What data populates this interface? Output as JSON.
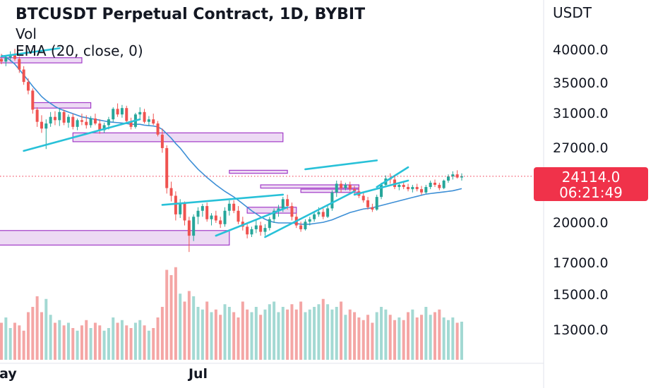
{
  "header": {
    "title": "BTCUSDT Perpetual Contract, 1D, BYBIT",
    "vol_label": "Vol",
    "ema_label": "EMA (20, close, 0)"
  },
  "price_axis": {
    "currency": "USDT",
    "ticks": [
      "40000.0",
      "35000.0",
      "31000.0",
      "27000.0",
      "20000.0",
      "17000.0",
      "15000.0",
      "13000.0"
    ]
  },
  "time_axis": {
    "ticks": [
      "May",
      "Jul"
    ]
  },
  "last_price": {
    "value": "24114.0",
    "countdown": "06:21:49"
  },
  "colors": {
    "up": "#26a69a",
    "down": "#ef5350",
    "vol_up": "#a3d9d3",
    "vol_down": "#f4a6a5",
    "ema": "#3d8fd6",
    "trendline": "#28c1d8",
    "zone_fill": "#ead3f2",
    "zone_stroke": "#a23bc8",
    "badge": "#f0324a"
  },
  "chart_data": {
    "type": "candlestick",
    "symbol": "BTCUSDT Perpetual Contract",
    "timeframe": "1D",
    "exchange": "BYBIT",
    "y_scale": "log",
    "ylim": [
      16000,
      46000
    ],
    "last_price": 24114.0,
    "candles": [
      [
        38600,
        39400,
        37800,
        38200
      ],
      [
        38200,
        39000,
        37500,
        38800
      ],
      [
        38800,
        39800,
        38200,
        39200
      ],
      [
        39200,
        40200,
        38300,
        38600
      ],
      [
        38600,
        39000,
        36500,
        37000
      ],
      [
        37000,
        37500,
        34800,
        35200
      ],
      [
        35200,
        35700,
        33500,
        34000
      ],
      [
        34000,
        34300,
        31000,
        31500
      ],
      [
        31500,
        31800,
        29400,
        30000
      ],
      [
        30000,
        30800,
        28700,
        29200
      ],
      [
        29200,
        30300,
        26900,
        29800
      ],
      [
        29800,
        31200,
        29400,
        30600
      ],
      [
        30600,
        31300,
        29600,
        30200
      ],
      [
        30200,
        31700,
        29500,
        31200
      ],
      [
        31200,
        31500,
        29600,
        29900
      ],
      [
        29900,
        30900,
        29300,
        30600
      ],
      [
        30600,
        31000,
        29100,
        29400
      ],
      [
        29400,
        30400,
        29000,
        30200
      ],
      [
        30200,
        31000,
        29600,
        30000
      ],
      [
        30000,
        30800,
        29200,
        29600
      ],
      [
        29600,
        30700,
        29300,
        30400
      ],
      [
        30400,
        31000,
        29600,
        29800
      ],
      [
        29800,
        30300,
        28600,
        29000
      ],
      [
        29000,
        29900,
        28700,
        29600
      ],
      [
        29600,
        30600,
        29100,
        30300
      ],
      [
        30300,
        31800,
        30000,
        31600
      ],
      [
        31600,
        32300,
        30600,
        30900
      ],
      [
        30900,
        32100,
        30500,
        31700
      ],
      [
        31700,
        32000,
        29800,
        30100
      ],
      [
        30100,
        30500,
        29100,
        29400
      ],
      [
        29400,
        31100,
        29200,
        30900
      ],
      [
        30900,
        31800,
        30400,
        31200
      ],
      [
        31200,
        31600,
        29800,
        30000
      ],
      [
        30000,
        30700,
        29500,
        30300
      ],
      [
        30300,
        31000,
        29600,
        29800
      ],
      [
        29800,
        30100,
        28300,
        28500
      ],
      [
        28500,
        29200,
        26500,
        27000
      ],
      [
        27000,
        27300,
        22500,
        23000
      ],
      [
        23000,
        23600,
        21800,
        22300
      ],
      [
        22300,
        22700,
        20200,
        20700
      ],
      [
        20700,
        22000,
        20400,
        21600
      ],
      [
        21600,
        21800,
        19800,
        20200
      ],
      [
        20200,
        20500,
        17800,
        19000
      ],
      [
        19000,
        20700,
        18600,
        20500
      ],
      [
        20500,
        21300,
        19900,
        21000
      ],
      [
        21000,
        21600,
        20500,
        21400
      ],
      [
        21400,
        21700,
        20100,
        20300
      ],
      [
        20300,
        20800,
        19800,
        20600
      ],
      [
        20600,
        21000,
        20000,
        20200
      ],
      [
        20200,
        20500,
        19600,
        19900
      ],
      [
        19900,
        21300,
        19700,
        21000
      ],
      [
        21000,
        21900,
        20600,
        21600
      ],
      [
        21600,
        21900,
        20800,
        21000
      ],
      [
        21000,
        21400,
        19900,
        20100
      ],
      [
        20100,
        20500,
        19400,
        19700
      ],
      [
        19700,
        19900,
        18800,
        19100
      ],
      [
        19100,
        19700,
        18900,
        19500
      ],
      [
        19500,
        20200,
        19200,
        19800
      ],
      [
        19800,
        20100,
        19000,
        19300
      ],
      [
        19300,
        19900,
        19000,
        19600
      ],
      [
        19600,
        20500,
        19400,
        20300
      ],
      [
        20300,
        21200,
        20000,
        21000
      ],
      [
        21000,
        21500,
        20500,
        21200
      ],
      [
        21200,
        22200,
        20900,
        22000
      ],
      [
        22000,
        22400,
        21100,
        21400
      ],
      [
        21400,
        21700,
        20200,
        20500
      ],
      [
        20500,
        20800,
        19600,
        19800
      ],
      [
        19800,
        20100,
        19300,
        19500
      ],
      [
        19500,
        20300,
        19400,
        20100
      ],
      [
        20100,
        20500,
        19800,
        20300
      ],
      [
        20300,
        20900,
        20100,
        20700
      ],
      [
        20700,
        21300,
        20500,
        20900
      ],
      [
        20900,
        21200,
        20300,
        20500
      ],
      [
        20500,
        21400,
        20400,
        21200
      ],
      [
        21200,
        22800,
        21000,
        22600
      ],
      [
        22600,
        23700,
        22200,
        23400
      ],
      [
        23400,
        23700,
        22600,
        23000
      ],
      [
        23000,
        23500,
        22800,
        23300
      ],
      [
        23300,
        23600,
        22700,
        22900
      ],
      [
        22900,
        23200,
        22400,
        22700
      ],
      [
        22700,
        23100,
        22100,
        22300
      ],
      [
        22300,
        22600,
        21700,
        21900
      ],
      [
        21900,
        22200,
        21100,
        21300
      ],
      [
        21300,
        21600,
        20900,
        21100
      ],
      [
        21100,
        22400,
        21000,
        22200
      ],
      [
        22200,
        23500,
        22000,
        23300
      ],
      [
        23300,
        24200,
        23100,
        23900
      ],
      [
        23900,
        24400,
        23400,
        23800
      ],
      [
        23800,
        24100,
        22900,
        23100
      ],
      [
        23100,
        23500,
        22800,
        23300
      ],
      [
        23300,
        23600,
        22900,
        23100
      ],
      [
        23100,
        23400,
        22700,
        22900
      ],
      [
        22900,
        23300,
        22600,
        23100
      ],
      [
        23100,
        23400,
        22700,
        22900
      ],
      [
        22900,
        23200,
        22400,
        22600
      ],
      [
        22600,
        23300,
        22500,
        23100
      ],
      [
        23100,
        23700,
        22900,
        23500
      ],
      [
        23500,
        23800,
        23100,
        23300
      ],
      [
        23300,
        23500,
        22800,
        23000
      ],
      [
        23000,
        23800,
        22900,
        23700
      ],
      [
        23700,
        24300,
        23500,
        24100
      ],
      [
        24100,
        24600,
        23800,
        24300
      ],
      [
        24300,
        24700,
        23900,
        24000
      ],
      [
        24000,
        24400,
        23700,
        24114
      ]
    ],
    "volume": [
      70,
      80,
      60,
      70,
      65,
      55,
      90,
      100,
      120,
      90,
      115,
      85,
      70,
      75,
      65,
      70,
      60,
      55,
      65,
      75,
      60,
      70,
      65,
      55,
      60,
      80,
      70,
      75,
      65,
      60,
      70,
      75,
      65,
      55,
      60,
      80,
      100,
      170,
      160,
      175,
      125,
      110,
      130,
      120,
      100,
      95,
      110,
      90,
      95,
      85,
      105,
      100,
      90,
      80,
      110,
      95,
      90,
      100,
      85,
      95,
      105,
      110,
      90,
      100,
      95,
      105,
      95,
      110,
      90,
      95,
      100,
      105,
      115,
      105,
      95,
      100,
      110,
      85,
      95,
      90,
      80,
      75,
      85,
      70,
      90,
      100,
      95,
      85,
      75,
      80,
      75,
      90,
      95,
      80,
      85,
      100,
      85,
      90,
      95,
      80,
      75,
      80,
      70,
      72
    ],
    "ema20": [
      39200,
      38900,
      38400,
      37800,
      37000,
      36200,
      35400,
      34600,
      33900,
      33200,
      32700,
      32300,
      31900,
      31600,
      31400,
      31200,
      31000,
      30800,
      30600,
      30500,
      30400,
      30300,
      30200,
      30100,
      30000,
      29950,
      29900,
      29850,
      29800,
      29700,
      29700,
      29700,
      29600,
      29550,
      29500,
      29400,
      29100,
      28600,
      28100,
      27500,
      27000,
      26400,
      25800,
      25300,
      24800,
      24400,
      24000,
      23650,
      23300,
      23000,
      22700,
      22450,
      22200,
      21900,
      21600,
      21300,
      21000,
      20750,
      20500,
      20300,
      20150,
      20050,
      20000,
      20000,
      20000,
      20000,
      19950,
      19900,
      19900,
      19900,
      19950,
      20000,
      20050,
      20150,
      20250,
      20400,
      20550,
      20700,
      20850,
      20950,
      21050,
      21150,
      21200,
      21250,
      21350,
      21450,
      21550,
      21650,
      21750,
      21850,
      21950,
      22050,
      22150,
      22250,
      22350,
      22450,
      22500,
      22550,
      22600,
      22650,
      22700,
      22750,
      22850,
      22950
    ],
    "trendlines": [
      {
        "from": [
          0,
          39000
        ],
        "to": [
          13,
          40300
        ]
      },
      {
        "from": [
          5,
          26700
        ],
        "to": [
          31,
          30300
        ]
      },
      {
        "from": [
          36,
          21500
        ],
        "to": [
          63,
          22400
        ]
      },
      {
        "from": [
          48,
          19000
        ],
        "to": [
          64,
          21300
        ]
      },
      {
        "from": [
          59,
          18900
        ],
        "to": [
          79,
          22700
        ]
      },
      {
        "from": [
          68,
          24800
        ],
        "to": [
          84,
          25700
        ]
      },
      {
        "from": [
          79,
          22400
        ],
        "to": [
          91,
          23700
        ]
      },
      {
        "from": [
          84,
          23100
        ],
        "to": [
          91,
          25000
        ]
      }
    ],
    "zones": [
      {
        "i0": -1,
        "i1": 18,
        "low": 38000,
        "high": 38800
      },
      {
        "i0": 7,
        "i1": 20,
        "low": 31700,
        "high": 32400
      },
      {
        "i0": 16,
        "i1": 63,
        "low": 27700,
        "high": 28700
      },
      {
        "i0": -1,
        "i1": 51,
        "low": 18300,
        "high": 19400
      },
      {
        "i0": 51,
        "i1": 64,
        "low": 24400,
        "high": 24700
      },
      {
        "i0": 55,
        "i1": 66,
        "low": 20800,
        "high": 21300
      },
      {
        "i0": 58,
        "i1": 80,
        "low": 23000,
        "high": 23300
      },
      {
        "i0": 67,
        "i1": 80,
        "low": 22600,
        "high": 22900
      }
    ],
    "xlabels": [
      {
        "index": 0,
        "label": "May"
      },
      {
        "index": 44,
        "label": "Jul"
      }
    ]
  }
}
